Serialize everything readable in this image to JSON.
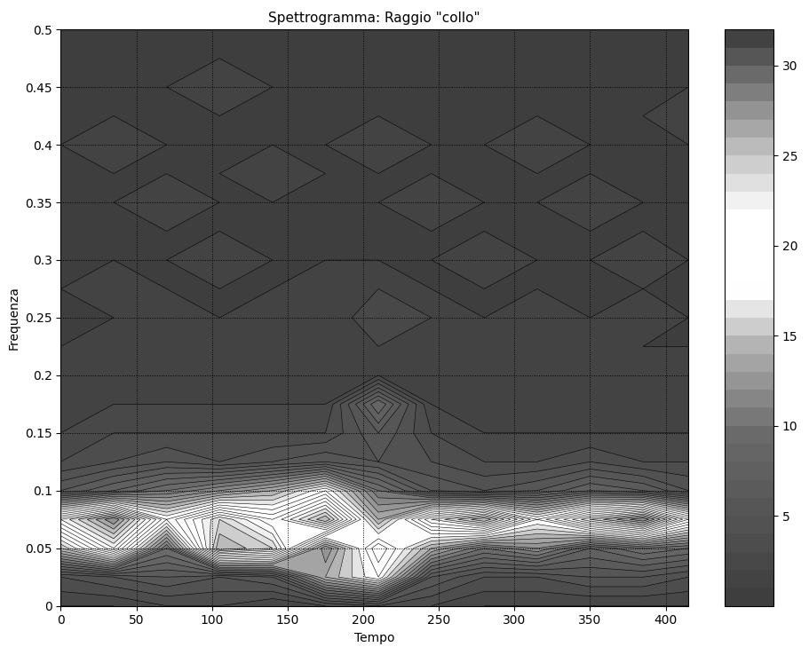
{
  "chart_data": {
    "type": "contour",
    "title": "Spettrogramma: Raggio \"collo\"",
    "x_label": "Tempo",
    "y_label": "Frequenza",
    "x": [
      0,
      35,
      70,
      105,
      140,
      175,
      210,
      245,
      280,
      315,
      350,
      385,
      415
    ],
    "y": [
      0,
      0.025,
      0.05,
      0.075,
      0.1,
      0.125,
      0.15,
      0.175,
      0.2,
      0.225,
      0.25,
      0.275,
      0.3,
      0.325,
      0.35,
      0.375,
      0.4,
      0.425,
      0.45,
      0.475,
      0.5
    ],
    "z": [
      [
        2,
        2,
        3,
        3,
        2,
        3,
        4,
        3,
        2,
        2,
        2,
        2,
        2
      ],
      [
        4,
        5,
        6,
        5,
        6,
        14,
        18,
        6,
        4,
        4,
        5,
        5,
        4
      ],
      [
        15,
        22,
        10,
        26,
        24,
        12,
        20,
        14,
        10,
        12,
        8,
        10,
        9
      ],
      [
        22,
        28,
        18,
        24,
        20,
        26,
        14,
        22,
        26,
        18,
        24,
        28,
        20
      ],
      [
        6,
        8,
        10,
        12,
        14,
        18,
        10,
        6,
        5,
        6,
        8,
        7,
        5
      ],
      [
        3,
        4,
        5,
        4,
        5,
        6,
        5,
        4,
        3,
        3,
        4,
        3,
        3
      ],
      [
        2,
        3,
        3,
        3,
        3,
        3,
        6,
        3,
        2,
        2,
        2,
        2,
        2
      ],
      [
        2,
        2,
        2,
        2,
        2,
        2,
        9,
        2,
        2,
        2,
        2,
        2,
        2
      ],
      [
        2,
        2,
        2,
        2,
        2,
        2,
        2,
        2,
        2,
        2,
        2,
        2,
        2
      ],
      [
        1,
        2,
        1,
        2,
        1,
        2,
        2,
        1,
        2,
        1,
        2,
        1,
        1
      ],
      [
        1,
        1,
        2,
        1,
        2,
        1,
        3,
        2,
        1,
        2,
        1,
        2,
        1
      ],
      [
        1,
        2,
        1,
        1,
        1,
        2,
        2,
        1,
        1,
        1,
        1,
        1,
        1
      ],
      [
        1,
        1,
        1,
        2,
        1,
        1,
        1,
        1,
        2,
        1,
        1,
        2,
        1
      ],
      [
        1,
        1,
        1,
        1,
        1,
        1,
        1,
        1,
        1,
        1,
        1,
        1,
        1
      ],
      [
        1,
        1,
        2,
        1,
        1,
        1,
        1,
        2,
        1,
        1,
        2,
        1,
        1
      ],
      [
        1,
        1,
        1,
        1,
        2,
        1,
        1,
        1,
        1,
        1,
        1,
        1,
        1
      ],
      [
        1,
        2,
        1,
        1,
        1,
        1,
        2,
        1,
        1,
        2,
        1,
        1,
        1
      ],
      [
        1,
        1,
        1,
        1,
        1,
        1,
        1,
        1,
        1,
        1,
        1,
        1,
        2
      ],
      [
        1,
        1,
        1,
        2,
        1,
        1,
        1,
        1,
        1,
        1,
        1,
        1,
        1
      ],
      [
        1,
        1,
        1,
        1,
        1,
        1,
        1,
        1,
        1,
        1,
        1,
        1,
        1
      ],
      [
        1,
        1,
        1,
        1,
        1,
        1,
        1,
        1,
        1,
        1,
        1,
        1,
        1
      ]
    ],
    "xlim": [
      0,
      415
    ],
    "ylim": [
      0,
      0.5
    ],
    "xticks": [
      0,
      50,
      100,
      150,
      200,
      250,
      300,
      350,
      400
    ],
    "yticks": [
      0,
      0.05,
      0.1,
      0.15,
      0.2,
      0.25,
      0.3,
      0.35,
      0.4,
      0.45,
      0.5
    ],
    "grid": true,
    "colorbar_range": [
      0,
      32
    ],
    "colorbar_ticks": [
      5,
      10,
      15,
      20,
      25,
      30
    ]
  }
}
